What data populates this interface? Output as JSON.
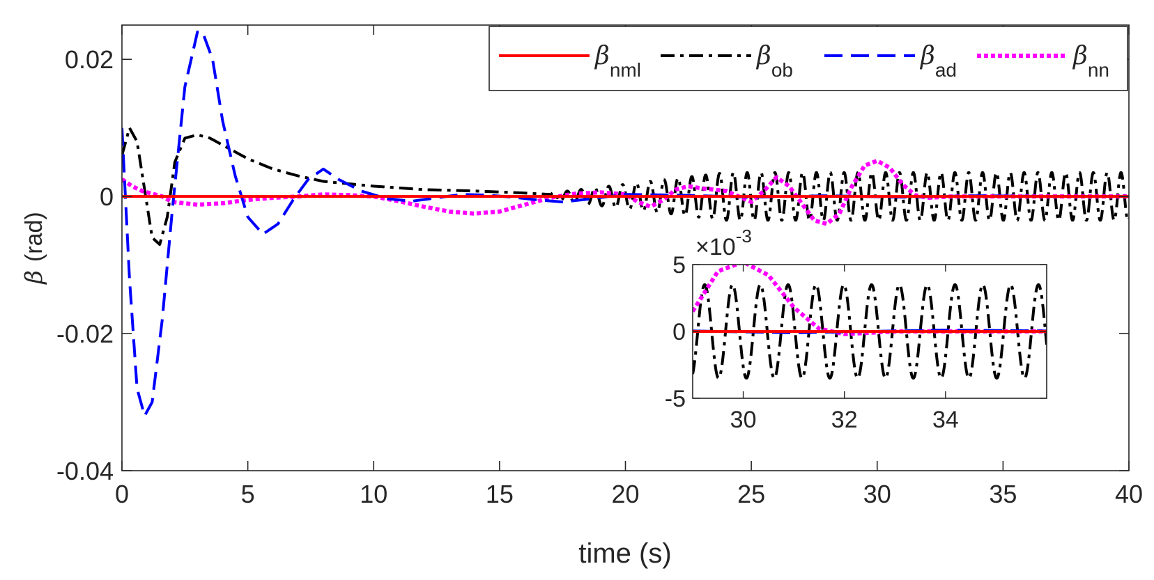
{
  "chart_data": {
    "type": "line",
    "xlabel": "time (s)",
    "ylabel_symbol": "β",
    "ylabel_unit": "(rad)",
    "xlim": [
      0,
      40
    ],
    "ylim": [
      -0.04,
      0.025
    ],
    "x_ticks": [
      0,
      5,
      10,
      15,
      20,
      25,
      30,
      35,
      40
    ],
    "x_tick_labels": [
      "0",
      "5",
      "10",
      "15",
      "20",
      "25",
      "30",
      "35",
      "40"
    ],
    "y_ticks": [
      -0.04,
      -0.02,
      0,
      0.02
    ],
    "y_tick_labels": [
      "-0.04",
      "-0.02",
      "0",
      "0.02"
    ],
    "grid": false,
    "legend": {
      "placement": "top-right",
      "orientation": "horizontal",
      "entries": [
        {
          "symbol": "β",
          "subscript": "nml",
          "series": "nml"
        },
        {
          "symbol": "β",
          "subscript": "ob",
          "series": "ob"
        },
        {
          "symbol": "β",
          "subscript": "ad",
          "series": "ad"
        },
        {
          "symbol": "β",
          "subscript": "nn",
          "series": "nn"
        }
      ]
    },
    "series": [
      {
        "name": "nml",
        "label": "β_nml",
        "color": "#ff0000",
        "style": "solid",
        "x": [
          0,
          40
        ],
        "y": [
          0,
          0
        ]
      },
      {
        "name": "ob",
        "label": "β_ob",
        "color": "#000000",
        "style": "dashdot",
        "x": [
          0,
          0.3,
          0.6,
          0.9,
          1.2,
          1.5,
          1.8,
          2.1,
          2.5,
          3.0,
          3.5,
          4.0,
          5.0,
          6.0,
          7.0,
          8.0,
          10.0,
          12.0,
          14.0,
          16.0,
          17.0
        ],
        "y": [
          0.006,
          0.01,
          0.008,
          0.001,
          -0.006,
          -0.007,
          -0.003,
          0.005,
          0.0085,
          0.009,
          0.0085,
          0.0075,
          0.0055,
          0.004,
          0.003,
          0.0022,
          0.0015,
          0.001,
          0.0008,
          0.0005,
          0.0003
        ],
        "oscillation": {
          "t_start": 17,
          "t_end": 40,
          "amp_start": 0.0005,
          "amp_end": 0.0035,
          "amp_growth_end": 24,
          "period": 0.55
        }
      },
      {
        "name": "ad",
        "label": "β_ad",
        "color": "#0000ff",
        "style": "dashed",
        "x": [
          0,
          0.3,
          0.6,
          0.9,
          1.2,
          1.6,
          2.0,
          2.5,
          3.0,
          3.2,
          3.6,
          4.0,
          4.5,
          5.0,
          5.6,
          6.2,
          6.8,
          7.4,
          8.0,
          8.6,
          9.5,
          10.5,
          11.5,
          12.5,
          13.5,
          14.5,
          15.5,
          16.5,
          17.5,
          18.5,
          20.0,
          22.0,
          25.0,
          28.0,
          31.0,
          34.0,
          37.0,
          40.0
        ],
        "y": [
          0.01,
          -0.012,
          -0.028,
          -0.032,
          -0.03,
          -0.018,
          -0.002,
          0.016,
          0.024,
          0.024,
          0.02,
          0.011,
          0.003,
          -0.003,
          -0.0055,
          -0.004,
          -0.0005,
          0.0025,
          0.004,
          0.0025,
          0.0008,
          -0.0003,
          -0.0007,
          -0.0002,
          0.0003,
          0.0002,
          -0.0001,
          -0.0005,
          -0.0008,
          -0.0004,
          0.0003,
          0.0002,
          -0.0001,
          0.0001,
          -0.0001,
          0.0001,
          0.0,
          0.0
        ]
      },
      {
        "name": "nn",
        "label": "β_nn",
        "color": "#ff00ff",
        "style": "dotted",
        "x": [
          0,
          0.4,
          0.8,
          1.2,
          1.6,
          2.0,
          3.0,
          4.0,
          5.0,
          6.0,
          7.0,
          8.0,
          9.0,
          10.0,
          11.0,
          12.0,
          13.0,
          14.0,
          15.0,
          16.0,
          17.0,
          18.0,
          19.0,
          20.0,
          20.5,
          21.0,
          21.5,
          22.0,
          22.5,
          23.0,
          24.0,
          25.0,
          25.5,
          26.0,
          26.5,
          27.0,
          27.5,
          28.0,
          28.5,
          29.0,
          29.5,
          30.0,
          30.5,
          31.0,
          31.5,
          32.0,
          33.0,
          35.0,
          37.0,
          40.0
        ],
        "y": [
          0.0025,
          0.0015,
          0.0008,
          0.0004,
          0.0,
          -0.0008,
          -0.0012,
          -0.001,
          -0.0005,
          -0.0002,
          0.0,
          0.0003,
          0.0002,
          0.0,
          -0.0007,
          -0.0015,
          -0.0022,
          -0.0025,
          -0.0022,
          -0.0012,
          -0.0002,
          0.0004,
          0.0006,
          0.0003,
          -0.0008,
          -0.0015,
          -0.0005,
          0.001,
          0.0015,
          0.0012,
          0.0008,
          -0.0008,
          0.0008,
          0.0028,
          0.0015,
          -0.001,
          -0.0035,
          -0.004,
          -0.0025,
          0.0015,
          0.0045,
          0.0052,
          0.0042,
          0.0018,
          0.0002,
          -0.0002,
          0.0,
          0.0,
          0.0,
          0.0
        ]
      }
    ],
    "inset": {
      "placement": "lower-right",
      "xlim": [
        29,
        36
      ],
      "ylim": [
        -0.005,
        0.005
      ],
      "x_ticks": [
        30,
        32,
        34
      ],
      "x_tick_labels": [
        "30",
        "32",
        "34"
      ],
      "y_ticks": [
        -0.005,
        0,
        0.005
      ],
      "y_tick_labels": [
        "-5",
        "0",
        "5"
      ],
      "y_multiplier_base": "×10",
      "y_multiplier_exp": "-3"
    }
  }
}
